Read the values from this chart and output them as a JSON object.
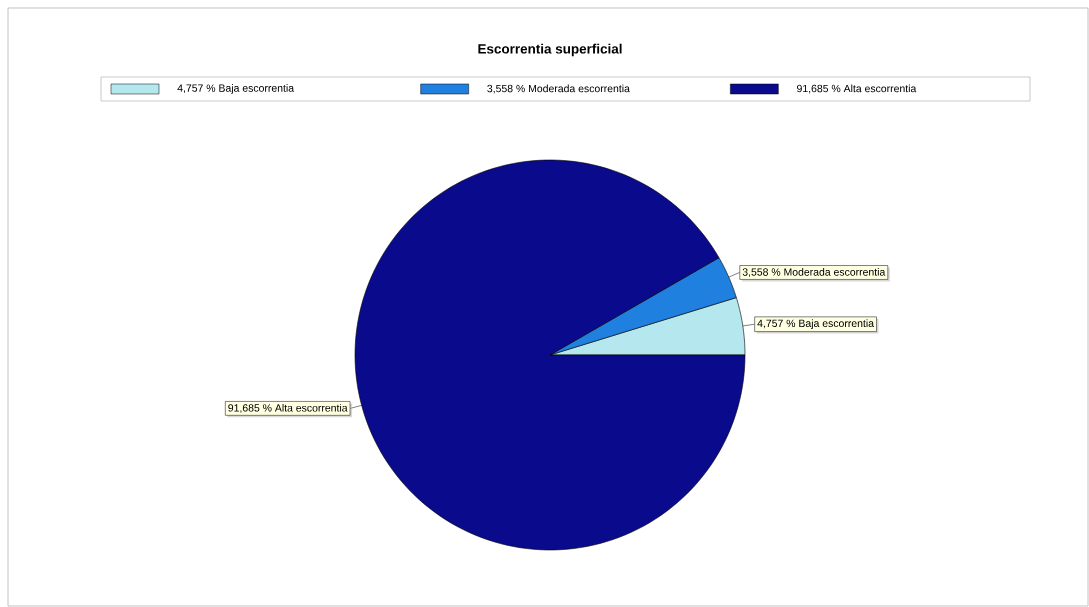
{
  "chart_data": {
    "type": "pie",
    "title": "Escorrentia superficial",
    "categories": [
      "4,757 % Baja escorrentia",
      "3,558 % Moderada escorrentia",
      "91,685 % Alta escorrentia"
    ],
    "values": [
      4.757,
      3.558,
      91.685
    ],
    "colors": [
      "#b4e8ee",
      "#2080e0",
      "#0a0a8c"
    ],
    "legend": "top"
  }
}
